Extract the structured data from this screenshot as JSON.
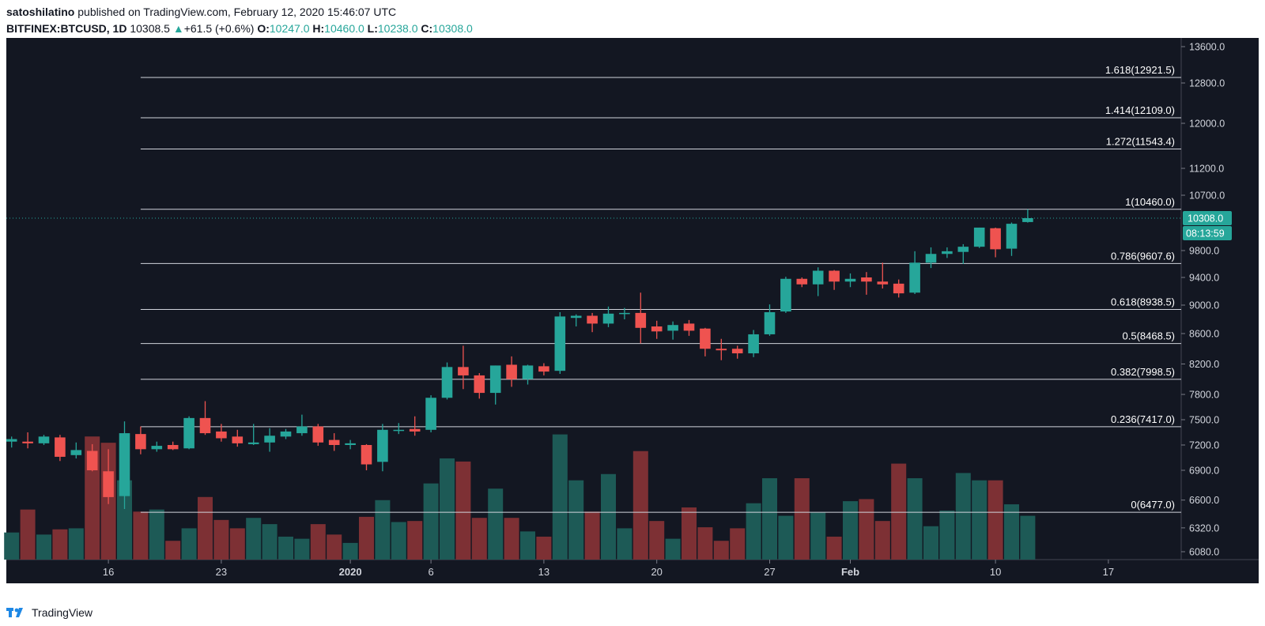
{
  "header": {
    "author": "satoshilatino",
    "published_text": "published on TradingView.com, February 12, 2020 15:46:07 UTC",
    "symbol": "BITFINEX:BTCUSD, 1D",
    "price": "10308.5",
    "change": "+61.5 (+0.6%)",
    "o_label": "O:",
    "o_value": "10247.0",
    "h_label": "H:",
    "h_value": "10460.0",
    "l_label": "L:",
    "l_value": "10238.0",
    "c_label": "C:",
    "c_value": "10308.0"
  },
  "footer": {
    "brand": "TradingView"
  },
  "colors": {
    "background": "#131722",
    "up": "#26a69a",
    "down": "#ef5350",
    "volume_up": "#1d5a56",
    "volume_down": "#7d3034",
    "fib_line": "#d1d4dc",
    "grid": "#1f2330"
  },
  "chart_data": {
    "type": "candlestick",
    "ylim": [
      5950,
      13800
    ],
    "y_ticks": [
      "13600.0",
      "12800.0",
      "12000.0",
      "11200.0",
      "10700.0",
      "10308.0",
      "9800.0",
      "9400.0",
      "9000.0",
      "8600.0",
      "8200.0",
      "7800.0",
      "7500.0",
      "7200.0",
      "6900.0",
      "6600.0",
      "6320.0",
      "6080.0"
    ],
    "x_tick_labels": [
      {
        "label": "16",
        "day": 6
      },
      {
        "label": "23",
        "day": 13
      },
      {
        "label": "2020",
        "day": 21
      },
      {
        "label": "6",
        "day": 26
      },
      {
        "label": "13",
        "day": 33
      },
      {
        "label": "20",
        "day": 40
      },
      {
        "label": "27",
        "day": 47
      },
      {
        "label": "Feb",
        "day": 52
      },
      {
        "label": "10",
        "day": 61
      },
      {
        "label": "17",
        "day": 68
      }
    ],
    "price_label": "10308.0",
    "countdown": "08:13:59",
    "last_price": 10308,
    "fib_levels": [
      {
        "label": "1.618(12921.5)",
        "value": 12921.5
      },
      {
        "label": "1.414(12109.0)",
        "value": 12109.0
      },
      {
        "label": "1.272(11543.4)",
        "value": 11543.4
      },
      {
        "label": "1(10460.0)",
        "value": 10460.0
      },
      {
        "label": "0.786(9607.6)",
        "value": 9607.6
      },
      {
        "label": "0.618(8938.5)",
        "value": 8938.5
      },
      {
        "label": "0.5(8468.5)",
        "value": 8468.5
      },
      {
        "label": "0.382(7998.5)",
        "value": 7998.5
      },
      {
        "label": "0.236(7417.0)",
        "value": 7417.0
      },
      {
        "label": "0(6477.0)",
        "value": 6477.0
      }
    ],
    "fib_start_day": 8,
    "candles": [
      {
        "o": 7240,
        "h": 7300,
        "l": 7170,
        "c": 7270,
        "v": 2.6
      },
      {
        "o": 7240,
        "h": 7350,
        "l": 7160,
        "c": 7220,
        "v": 4.8
      },
      {
        "o": 7220,
        "h": 7320,
        "l": 7200,
        "c": 7300,
        "v": 2.4
      },
      {
        "o": 7290,
        "h": 7320,
        "l": 7010,
        "c": 7060,
        "v": 2.9
      },
      {
        "o": 7080,
        "h": 7230,
        "l": 7040,
        "c": 7140,
        "v": 3.0
      },
      {
        "o": 7130,
        "h": 7210,
        "l": 6890,
        "c": 6900,
        "v": 11.8
      },
      {
        "o": 6890,
        "h": 7150,
        "l": 6560,
        "c": 6630,
        "v": 11.2
      },
      {
        "o": 6640,
        "h": 7480,
        "l": 6510,
        "c": 7340,
        "v": 7.6
      },
      {
        "o": 7330,
        "h": 7420,
        "l": 7090,
        "c": 7150,
        "v": 4.6
      },
      {
        "o": 7150,
        "h": 7240,
        "l": 7120,
        "c": 7190,
        "v": 4.8
      },
      {
        "o": 7200,
        "h": 7240,
        "l": 7140,
        "c": 7150,
        "v": 1.8
      },
      {
        "o": 7160,
        "h": 7540,
        "l": 7150,
        "c": 7520,
        "v": 3.0
      },
      {
        "o": 7520,
        "h": 7720,
        "l": 7320,
        "c": 7340,
        "v": 6.0
      },
      {
        "o": 7360,
        "h": 7450,
        "l": 7240,
        "c": 7280,
        "v": 3.8
      },
      {
        "o": 7300,
        "h": 7380,
        "l": 7180,
        "c": 7220,
        "v": 3.0
      },
      {
        "o": 7210,
        "h": 7450,
        "l": 7200,
        "c": 7230,
        "v": 4.0
      },
      {
        "o": 7230,
        "h": 7400,
        "l": 7120,
        "c": 7310,
        "v": 3.4
      },
      {
        "o": 7300,
        "h": 7390,
        "l": 7270,
        "c": 7360,
        "v": 2.2
      },
      {
        "o": 7340,
        "h": 7560,
        "l": 7310,
        "c": 7420,
        "v": 2.0
      },
      {
        "o": 7420,
        "h": 7450,
        "l": 7190,
        "c": 7230,
        "v": 3.4
      },
      {
        "o": 7260,
        "h": 7340,
        "l": 7130,
        "c": 7200,
        "v": 2.4
      },
      {
        "o": 7200,
        "h": 7260,
        "l": 7150,
        "c": 7220,
        "v": 1.6
      },
      {
        "o": 7200,
        "h": 7210,
        "l": 6900,
        "c": 6970,
        "v": 4.1
      },
      {
        "o": 7000,
        "h": 7450,
        "l": 6890,
        "c": 7380,
        "v": 5.7
      },
      {
        "o": 7370,
        "h": 7460,
        "l": 7330,
        "c": 7380,
        "v": 3.6
      },
      {
        "o": 7390,
        "h": 7540,
        "l": 7310,
        "c": 7360,
        "v": 3.7
      },
      {
        "o": 7380,
        "h": 7790,
        "l": 7350,
        "c": 7760,
        "v": 7.3
      },
      {
        "o": 7760,
        "h": 8220,
        "l": 7740,
        "c": 8160,
        "v": 9.7
      },
      {
        "o": 8160,
        "h": 8440,
        "l": 7870,
        "c": 8050,
        "v": 9.4
      },
      {
        "o": 8050,
        "h": 8080,
        "l": 7750,
        "c": 7820,
        "v": 4.0
      },
      {
        "o": 7820,
        "h": 8180,
        "l": 7680,
        "c": 8180,
        "v": 6.8
      },
      {
        "o": 8190,
        "h": 8300,
        "l": 7900,
        "c": 8000,
        "v": 4.0
      },
      {
        "o": 8000,
        "h": 8190,
        "l": 7930,
        "c": 8180,
        "v": 2.7
      },
      {
        "o": 8170,
        "h": 8210,
        "l": 8050,
        "c": 8100,
        "v": 2.2
      },
      {
        "o": 8110,
        "h": 8900,
        "l": 8070,
        "c": 8840,
        "v": 12.0
      },
      {
        "o": 8820,
        "h": 8870,
        "l": 8700,
        "c": 8850,
        "v": 7.6
      },
      {
        "o": 8850,
        "h": 8890,
        "l": 8620,
        "c": 8740,
        "v": 4.6
      },
      {
        "o": 8740,
        "h": 8980,
        "l": 8690,
        "c": 8880,
        "v": 8.2
      },
      {
        "o": 8880,
        "h": 8960,
        "l": 8800,
        "c": 8890,
        "v": 3.0
      },
      {
        "o": 8890,
        "h": 9180,
        "l": 8470,
        "c": 8680,
        "v": 10.4
      },
      {
        "o": 8700,
        "h": 8780,
        "l": 8530,
        "c": 8630,
        "v": 3.7
      },
      {
        "o": 8640,
        "h": 8770,
        "l": 8520,
        "c": 8720,
        "v": 2.0
      },
      {
        "o": 8740,
        "h": 8790,
        "l": 8570,
        "c": 8640,
        "v": 5.0
      },
      {
        "o": 8670,
        "h": 8680,
        "l": 8300,
        "c": 8400,
        "v": 3.1
      },
      {
        "o": 8400,
        "h": 8530,
        "l": 8250,
        "c": 8380,
        "v": 1.8
      },
      {
        "o": 8400,
        "h": 8440,
        "l": 8270,
        "c": 8340,
        "v": 3.0
      },
      {
        "o": 8340,
        "h": 8650,
        "l": 8290,
        "c": 8590,
        "v": 5.4
      },
      {
        "o": 8590,
        "h": 9010,
        "l": 8570,
        "c": 8900,
        "v": 7.8
      },
      {
        "o": 8910,
        "h": 9410,
        "l": 8890,
        "c": 9380,
        "v": 4.2
      },
      {
        "o": 9380,
        "h": 9400,
        "l": 9260,
        "c": 9300,
        "v": 7.8
      },
      {
        "o": 9300,
        "h": 9550,
        "l": 9130,
        "c": 9500,
        "v": 4.5
      },
      {
        "o": 9500,
        "h": 9510,
        "l": 9220,
        "c": 9340,
        "v": 2.2
      },
      {
        "o": 9340,
        "h": 9460,
        "l": 9260,
        "c": 9380,
        "v": 5.6
      },
      {
        "o": 9400,
        "h": 9480,
        "l": 9150,
        "c": 9340,
        "v": 5.8
      },
      {
        "o": 9340,
        "h": 9620,
        "l": 9240,
        "c": 9300,
        "v": 3.7
      },
      {
        "o": 9310,
        "h": 9370,
        "l": 9110,
        "c": 9170,
        "v": 9.2
      },
      {
        "o": 9180,
        "h": 9790,
        "l": 9160,
        "c": 9620,
        "v": 7.8
      },
      {
        "o": 9620,
        "h": 9850,
        "l": 9540,
        "c": 9750,
        "v": 3.2
      },
      {
        "o": 9750,
        "h": 9850,
        "l": 9690,
        "c": 9790,
        "v": 4.7
      },
      {
        "o": 9780,
        "h": 9900,
        "l": 9600,
        "c": 9860,
        "v": 8.3
      },
      {
        "o": 9860,
        "h": 10160,
        "l": 9840,
        "c": 10160,
        "v": 7.6
      },
      {
        "o": 10150,
        "h": 10160,
        "l": 9700,
        "c": 9820,
        "v": 7.6
      },
      {
        "o": 9830,
        "h": 10240,
        "l": 9720,
        "c": 10220,
        "v": 5.3
      },
      {
        "o": 10247,
        "h": 10460,
        "l": 10238,
        "c": 10308,
        "v": 4.2
      }
    ]
  }
}
